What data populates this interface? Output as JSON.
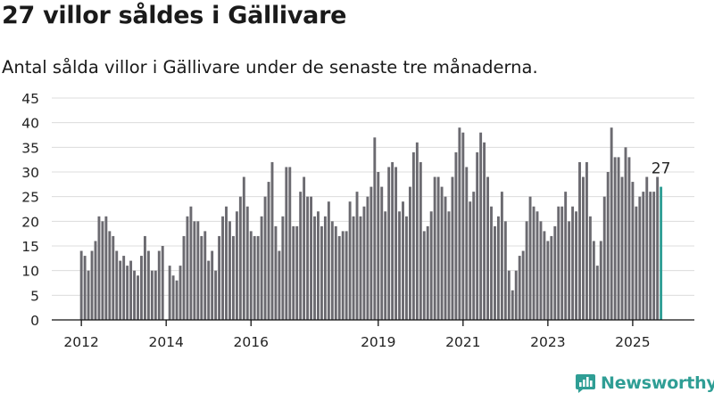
{
  "title": "27 villor såldes i Gällivare",
  "subtitle": "Antal sålda villor i Gällivare under de senaste tre månaderna.",
  "brand": {
    "name": "Newsworthy",
    "color": "#2f9e95",
    "icon": "newsworthy-logo-icon"
  },
  "chart_data": {
    "type": "bar",
    "ylim": [
      0,
      45
    ],
    "yticks": [
      0,
      5,
      10,
      15,
      20,
      25,
      30,
      35,
      40,
      45
    ],
    "grid": true,
    "bar_color": "#6b6a70",
    "highlight_color": "#2f9e95",
    "highlight_label": "27",
    "x_tick_labels": [
      {
        "label": "2012",
        "index": 0
      },
      {
        "label": "2014",
        "index": 24
      },
      {
        "label": "2016",
        "index": 48
      },
      {
        "label": "2019",
        "index": 84
      },
      {
        "label": "2021",
        "index": 108
      },
      {
        "label": "2023",
        "index": 132
      },
      {
        "label": "2025",
        "index": 156
      }
    ],
    "series": [
      {
        "values": [
          14,
          13,
          10,
          14,
          16,
          21,
          20,
          21,
          18,
          17,
          14,
          12,
          13,
          11,
          12,
          10,
          9,
          13,
          17,
          14,
          10,
          10,
          14,
          15,
          0,
          11,
          9,
          8,
          11,
          17,
          21,
          23,
          20,
          20,
          17,
          18,
          12,
          14,
          10,
          17,
          21,
          23,
          20,
          17,
          22,
          25,
          29,
          23,
          18,
          17,
          17,
          21,
          25,
          28,
          32,
          19,
          14,
          21,
          31,
          31,
          19,
          19,
          26,
          29,
          25,
          25,
          21,
          22,
          19,
          21,
          24,
          20,
          19,
          17,
          18,
          18,
          24,
          21,
          26,
          21,
          23,
          25,
          27,
          37,
          30,
          27,
          22,
          31,
          32,
          31,
          22,
          24,
          21,
          27,
          34,
          36,
          32,
          18,
          19,
          22,
          29,
          29,
          27,
          25,
          22,
          29,
          34,
          39,
          38,
          31,
          24,
          26,
          34,
          38,
          36,
          29,
          23,
          19,
          21,
          26,
          20,
          10,
          6,
          10,
          13,
          14,
          20,
          25,
          23,
          22,
          20,
          18,
          16,
          17,
          19,
          23,
          23,
          26,
          20,
          23,
          22,
          32,
          29,
          32,
          21,
          16,
          11,
          16,
          25,
          30,
          39,
          33,
          33,
          29,
          35,
          33,
          28,
          23,
          25,
          26,
          29,
          26,
          26,
          29,
          27
        ]
      }
    ]
  }
}
